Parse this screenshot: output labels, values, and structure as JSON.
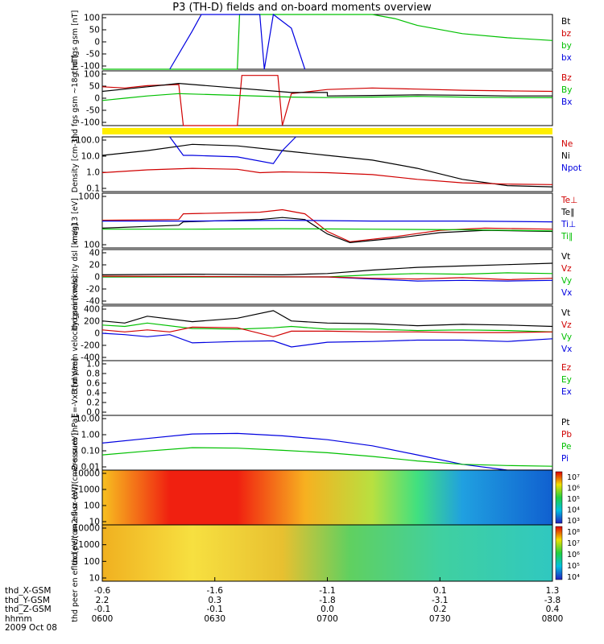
{
  "title": "P3 (TH-D) fields and on-board moments overview",
  "chart_data": [
    {
      "type": "line",
      "ylabel": "thd fgs gsm [nT]",
      "ylim": [
        -100,
        100
      ],
      "yticks": [
        "100",
        "50",
        "0",
        "-50",
        "-100"
      ],
      "legend": [
        {
          "label": "Bt",
          "color": "#000000"
        },
        {
          "label": "bz",
          "color": "#d00000"
        },
        {
          "label": "by",
          "color": "#00c000"
        },
        {
          "label": "bx",
          "color": "#0000e0"
        }
      ],
      "series": [
        {
          "name": "by",
          "color": "#00c000",
          "x": [
            0.0,
            0.25,
            0.3,
            0.305,
            0.33,
            0.5,
            0.58,
            0.6,
            0.65,
            0.7,
            0.8,
            0.9,
            1.0
          ],
          "y": [
            -100,
            -100,
            -100,
            100,
            100,
            100,
            100,
            100,
            85,
            60,
            30,
            15,
            5
          ]
        },
        {
          "name": "bx",
          "color": "#0000e0",
          "x": [
            0.15,
            0.2,
            0.22,
            0.3,
            0.35,
            0.36,
            0.38,
            0.42,
            0.45
          ],
          "y": [
            -100,
            40,
            100,
            100,
            100,
            -100,
            100,
            50,
            -100
          ]
        }
      ]
    },
    {
      "type": "line",
      "ylabel": "thd fgs gsm ~18g [nT]",
      "ylim": [
        -120,
        120
      ],
      "yticks": [
        "100",
        "50",
        "0",
        "-50",
        "-100"
      ],
      "legend": [
        {
          "label": "Bz",
          "color": "#d00000"
        },
        {
          "label": "By",
          "color": "#00c000"
        },
        {
          "label": "Bx",
          "color": "#0000e0"
        }
      ],
      "series": [
        {
          "name": "Bz",
          "color": "#d00000",
          "x": [
            0.0,
            0.05,
            0.1,
            0.17,
            0.18,
            0.3,
            0.31,
            0.39,
            0.4,
            0.42,
            0.5,
            0.6,
            0.7,
            0.8,
            0.9,
            1.0
          ],
          "y": [
            50,
            45,
            55,
            60,
            -120,
            -120,
            100,
            100,
            -120,
            20,
            38,
            45,
            40,
            35,
            32,
            30
          ]
        },
        {
          "name": "Bt",
          "color": "#000000",
          "x": [
            0.0,
            0.05,
            0.1,
            0.17,
            0.42,
            0.5,
            0.5,
            0.6,
            0.7,
            0.8,
            0.9,
            1.0
          ],
          "y": [
            30,
            40,
            50,
            65,
            25,
            25,
            10,
            12,
            15,
            13,
            10,
            10
          ]
        },
        {
          "name": "By",
          "color": "#00c000",
          "x": [
            0.0,
            0.05,
            0.1,
            0.17,
            0.42,
            0.5,
            0.6,
            0.7,
            0.8,
            0.9,
            1.0
          ],
          "y": [
            -10,
            0,
            10,
            20,
            5,
            3,
            5,
            8,
            5,
            3,
            2
          ]
        }
      ]
    },
    {
      "type": "line",
      "ylabel": "Density [cm-3]",
      "ylim": [
        0.05,
        150
      ],
      "scale": "log",
      "yticks": [
        "100.0",
        "10.0",
        "1.0",
        "0.1"
      ],
      "legend": [
        {
          "label": "Ne",
          "color": "#d00000"
        },
        {
          "label": "Ni",
          "color": "#000000"
        },
        {
          "label": "Npot",
          "color": "#0000e0"
        }
      ],
      "series": [
        {
          "name": "Ni",
          "color": "#000000",
          "x": [
            0.0,
            0.1,
            0.2,
            0.3,
            0.4,
            0.5,
            0.6,
            0.7,
            0.8,
            0.9,
            1.0
          ],
          "y": [
            10,
            20,
            50,
            40,
            20,
            10,
            5,
            1.5,
            0.3,
            0.12,
            0.1
          ]
        },
        {
          "name": "Ne",
          "color": "#d00000",
          "x": [
            0.0,
            0.1,
            0.2,
            0.3,
            0.35,
            0.4,
            0.5,
            0.6,
            0.7,
            0.8,
            0.9,
            1.0
          ],
          "y": [
            0.8,
            1.2,
            1.5,
            1.3,
            0.8,
            0.9,
            0.8,
            0.6,
            0.3,
            0.18,
            0.15,
            0.14
          ]
        },
        {
          "name": "Npot",
          "color": "#0000e0",
          "x": [
            0.15,
            0.18,
            0.2,
            0.3,
            0.38,
            0.4,
            0.43
          ],
          "y": [
            150,
            10,
            10,
            8,
            3,
            20,
            150
          ]
        }
      ]
    },
    {
      "type": "line",
      "ylabel": "mag13 [eV]",
      "ylim": [
        100,
        1000
      ],
      "scale": "log",
      "yticks": [
        "1000",
        "100"
      ],
      "legend": [
        {
          "label": "Te⊥",
          "color": "#d00000"
        },
        {
          "label": "Te∥",
          "color": "#000000"
        },
        {
          "label": "Ti⊥",
          "color": "#0000e0"
        },
        {
          "label": "Ti∥",
          "color": "#00c000"
        }
      ],
      "series": [
        {
          "name": "Te⊥",
          "color": "#d00000",
          "x": [
            0.0,
            0.17,
            0.18,
            0.35,
            0.4,
            0.45,
            0.5,
            0.55,
            0.65,
            0.75,
            0.85,
            1.0
          ],
          "y": [
            320,
            330,
            420,
            450,
            500,
            420,
            200,
            130,
            160,
            210,
            230,
            220
          ]
        },
        {
          "name": "Te∥",
          "color": "#000000",
          "x": [
            0.0,
            0.17,
            0.18,
            0.35,
            0.4,
            0.45,
            0.5,
            0.55,
            0.65,
            0.75,
            0.85,
            1.0
          ],
          "y": [
            230,
            260,
            300,
            330,
            360,
            330,
            180,
            125,
            150,
            190,
            210,
            200
          ]
        },
        {
          "name": "Ti⊥",
          "color": "#0000e0",
          "x": [
            0.0,
            0.2,
            0.4,
            0.6,
            0.8,
            1.0
          ],
          "y": [
            310,
            310,
            320,
            310,
            310,
            300
          ]
        },
        {
          "name": "Ti∥",
          "color": "#00c000",
          "x": [
            0.0,
            0.2,
            0.4,
            0.6,
            0.8,
            1.0
          ],
          "y": [
            220,
            220,
            225,
            220,
            215,
            205
          ]
        }
      ]
    },
    {
      "type": "line",
      "ylabel": "thd peim velocity dsl [km/s]",
      "ylim": [
        -40,
        40
      ],
      "yticks": [
        "40",
        "20",
        "0",
        "-20",
        "-40"
      ],
      "legend": [
        {
          "label": "Vt",
          "color": "#000000"
        },
        {
          "label": "Vz",
          "color": "#d00000"
        },
        {
          "label": "Vy",
          "color": "#00c000"
        },
        {
          "label": "Vx",
          "color": "#0000e0"
        }
      ],
      "series": [
        {
          "name": "Vx",
          "color": "#0000e0",
          "x": [
            0.0,
            0.5,
            0.6,
            0.7,
            0.8,
            0.9,
            1.0
          ],
          "y": [
            0,
            0,
            -3,
            -6,
            -5,
            -6,
            -5
          ]
        },
        {
          "name": "Vy",
          "color": "#00c000",
          "x": [
            0.0,
            0.5,
            0.6,
            0.7,
            0.8,
            0.9,
            1.0
          ],
          "y": [
            0,
            0,
            3,
            5,
            4,
            6,
            5
          ]
        },
        {
          "name": "Vz",
          "color": "#d00000",
          "x": [
            0.0,
            0.5,
            0.6,
            0.7,
            0.8,
            0.9,
            1.0
          ],
          "y": [
            1,
            0,
            -2,
            -3,
            -1,
            -4,
            -2
          ]
        },
        {
          "name": "Vt",
          "color": "#000000",
          "x": [
            0.0,
            0.2,
            0.4,
            0.5,
            0.6,
            0.7,
            0.8,
            0.9,
            1.0
          ],
          "y": [
            3,
            4,
            3,
            5,
            10,
            14,
            16,
            18,
            20
          ]
        }
      ]
    },
    {
      "type": "line",
      "ylabel": "thd peem velocity gsm [km/s]",
      "ylim": [
        -400,
        400
      ],
      "yticks": [
        "400",
        "200",
        "0",
        "-200",
        "-400"
      ],
      "legend": [
        {
          "label": "Vt",
          "color": "#000000"
        },
        {
          "label": "Vz",
          "color": "#d00000"
        },
        {
          "label": "Vy",
          "color": "#00c000"
        },
        {
          "label": "Vx",
          "color": "#0000e0"
        }
      ],
      "series": [
        {
          "name": "Vt",
          "color": "#000000",
          "x": [
            0.0,
            0.05,
            0.1,
            0.2,
            0.3,
            0.38,
            0.42,
            0.5,
            0.6,
            0.7,
            0.8,
            0.9,
            1.0
          ],
          "y": [
            180,
            150,
            250,
            170,
            220,
            330,
            180,
            150,
            140,
            110,
            130,
            120,
            100
          ]
        },
        {
          "name": "Vy",
          "color": "#00c000",
          "x": [
            0.0,
            0.05,
            0.1,
            0.2,
            0.3,
            0.38,
            0.42,
            0.5,
            0.6,
            0.7,
            0.8,
            0.9,
            1.0
          ],
          "y": [
            120,
            100,
            150,
            70,
            60,
            80,
            100,
            60,
            60,
            40,
            50,
            40,
            20
          ]
        },
        {
          "name": "Vz",
          "color": "#d00000",
          "x": [
            0.0,
            0.05,
            0.1,
            0.15,
            0.2,
            0.3,
            0.38,
            0.42,
            0.5,
            0.6,
            0.7,
            0.8,
            0.9,
            1.0
          ],
          "y": [
            50,
            20,
            50,
            20,
            90,
            80,
            -50,
            30,
            30,
            20,
            20,
            10,
            10,
            20
          ]
        },
        {
          "name": "Vx",
          "color": "#0000e0",
          "x": [
            0.0,
            0.05,
            0.1,
            0.15,
            0.2,
            0.3,
            0.38,
            0.42,
            0.5,
            0.6,
            0.7,
            0.8,
            0.9,
            1.0
          ],
          "y": [
            0,
            -20,
            -50,
            -20,
            -140,
            -120,
            -110,
            -200,
            -130,
            -120,
            -100,
            -100,
            -120,
            -80
          ]
        }
      ]
    },
    {
      "type": "line",
      "ylabel": "E=-VxB [mV/m]",
      "ylim": [
        -1,
        1
      ],
      "yticks": [
        "1.0",
        "0.8",
        "0.6",
        "0.4",
        "0.2",
        "0.0"
      ],
      "legend": [
        {
          "label": "Ez",
          "color": "#d00000"
        },
        {
          "label": "Ey",
          "color": "#00c000"
        },
        {
          "label": "Ex",
          "color": "#0000e0"
        }
      ],
      "series": []
    },
    {
      "type": "line",
      "ylabel": "Pressure [nPa]",
      "ylim": [
        0.005,
        20
      ],
      "scale": "log",
      "yticks": [
        "10.00",
        "1.00",
        "0.10",
        "0.01"
      ],
      "legend": [
        {
          "label": "Pt",
          "color": "#000000"
        },
        {
          "label": "Pb",
          "color": "#d00000"
        },
        {
          "label": "Pe",
          "color": "#00c000"
        },
        {
          "label": "Pi",
          "color": "#0000e0"
        }
      ],
      "series": [
        {
          "name": "Pi",
          "color": "#0000e0",
          "x": [
            0.0,
            0.1,
            0.2,
            0.3,
            0.4,
            0.5,
            0.6,
            0.7,
            0.8,
            0.9,
            1.0
          ],
          "y": [
            0.3,
            0.6,
            1.2,
            1.3,
            0.9,
            0.5,
            0.2,
            0.05,
            0.012,
            0.005,
            0.004
          ]
        },
        {
          "name": "Pe",
          "color": "#00c000",
          "x": [
            0.0,
            0.1,
            0.2,
            0.3,
            0.4,
            0.5,
            0.6,
            0.7,
            0.8,
            0.9,
            1.0
          ],
          "y": [
            0.05,
            0.09,
            0.15,
            0.14,
            0.1,
            0.07,
            0.04,
            0.02,
            0.012,
            0.01,
            0.009
          ]
        }
      ]
    },
    {
      "type": "heatmap",
      "ylabel": "thd peir en eflux (eV/(cm2-s-sr-eV))",
      "yticks": [
        "10000",
        "1000",
        "100",
        "10"
      ],
      "colorbar": [
        "10⁷",
        "10⁶",
        "10⁵",
        "10⁴",
        "10³"
      ]
    },
    {
      "type": "heatmap",
      "ylabel": "thd peer en eflux (eV/(cm2-s-sr-eV))",
      "yticks": [
        "10000",
        "1000",
        "100",
        "10"
      ],
      "colorbar": [
        "10⁸",
        "10⁷",
        "10⁶",
        "10⁵",
        "10⁴"
      ]
    }
  ],
  "footer": {
    "rows": [
      {
        "label": "thd_X-GSM",
        "values": [
          "-0.6",
          "-1.6",
          "-1.1",
          "0.1",
          "1.3"
        ]
      },
      {
        "label": "thd_Y-GSM",
        "values": [
          "2.2",
          "0.3",
          "-1.8",
          "-3.1",
          "-3.8"
        ]
      },
      {
        "label": "thd_Z-GSM",
        "values": [
          "-0.1",
          "-0.1",
          "0.0",
          "0.2",
          "0.4"
        ]
      },
      {
        "label": "hhmm",
        "values": [
          "0600",
          "0630",
          "0700",
          "0730",
          "0800"
        ]
      }
    ],
    "date": "2009 Oct 08"
  }
}
